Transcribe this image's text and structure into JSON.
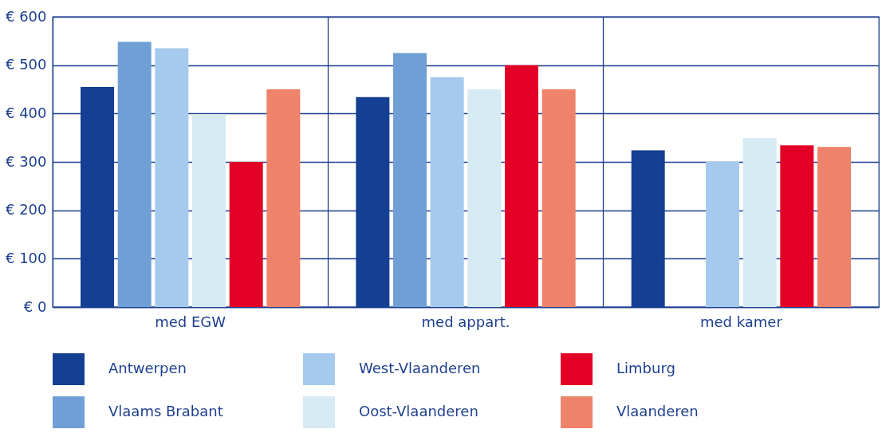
{
  "chart_data": {
    "type": "bar",
    "categories": [
      "med EGW",
      "med appart.",
      "med kamer"
    ],
    "series": [
      {
        "name": "Antwerpen",
        "color": "#143f92",
        "values": [
          455,
          434,
          324
        ]
      },
      {
        "name": "Vlaams Brabant",
        "color": "#6f9fd4",
        "values": [
          548,
          525,
          null
        ]
      },
      {
        "name": "West-Vlaanderen",
        "color": "#a5caed",
        "values": [
          535,
          475,
          300
        ]
      },
      {
        "name": "Oost-Vlaanderen",
        "color": "#d5eaf3",
        "values": [
          398,
          450,
          349
        ]
      },
      {
        "name": "Limburg",
        "color": "#e30027",
        "values": [
          300,
          500,
          334
        ]
      },
      {
        "name": "Vlaanderen",
        "color": "#ef826a",
        "values": [
          450,
          450,
          331
        ]
      }
    ],
    "ylim": [
      0,
      600
    ],
    "yticks": [
      {
        "value": 0,
        "label": "€ 0"
      },
      {
        "value": 100,
        "label": "€ 100"
      },
      {
        "value": 200,
        "label": "€ 200"
      },
      {
        "value": 300,
        "label": "€ 300"
      },
      {
        "value": 400,
        "label": "€ 400"
      },
      {
        "value": 500,
        "label": "€ 500"
      },
      {
        "value": 600,
        "label": "€ 600"
      }
    ],
    "grid": true,
    "legend": "bottom"
  }
}
